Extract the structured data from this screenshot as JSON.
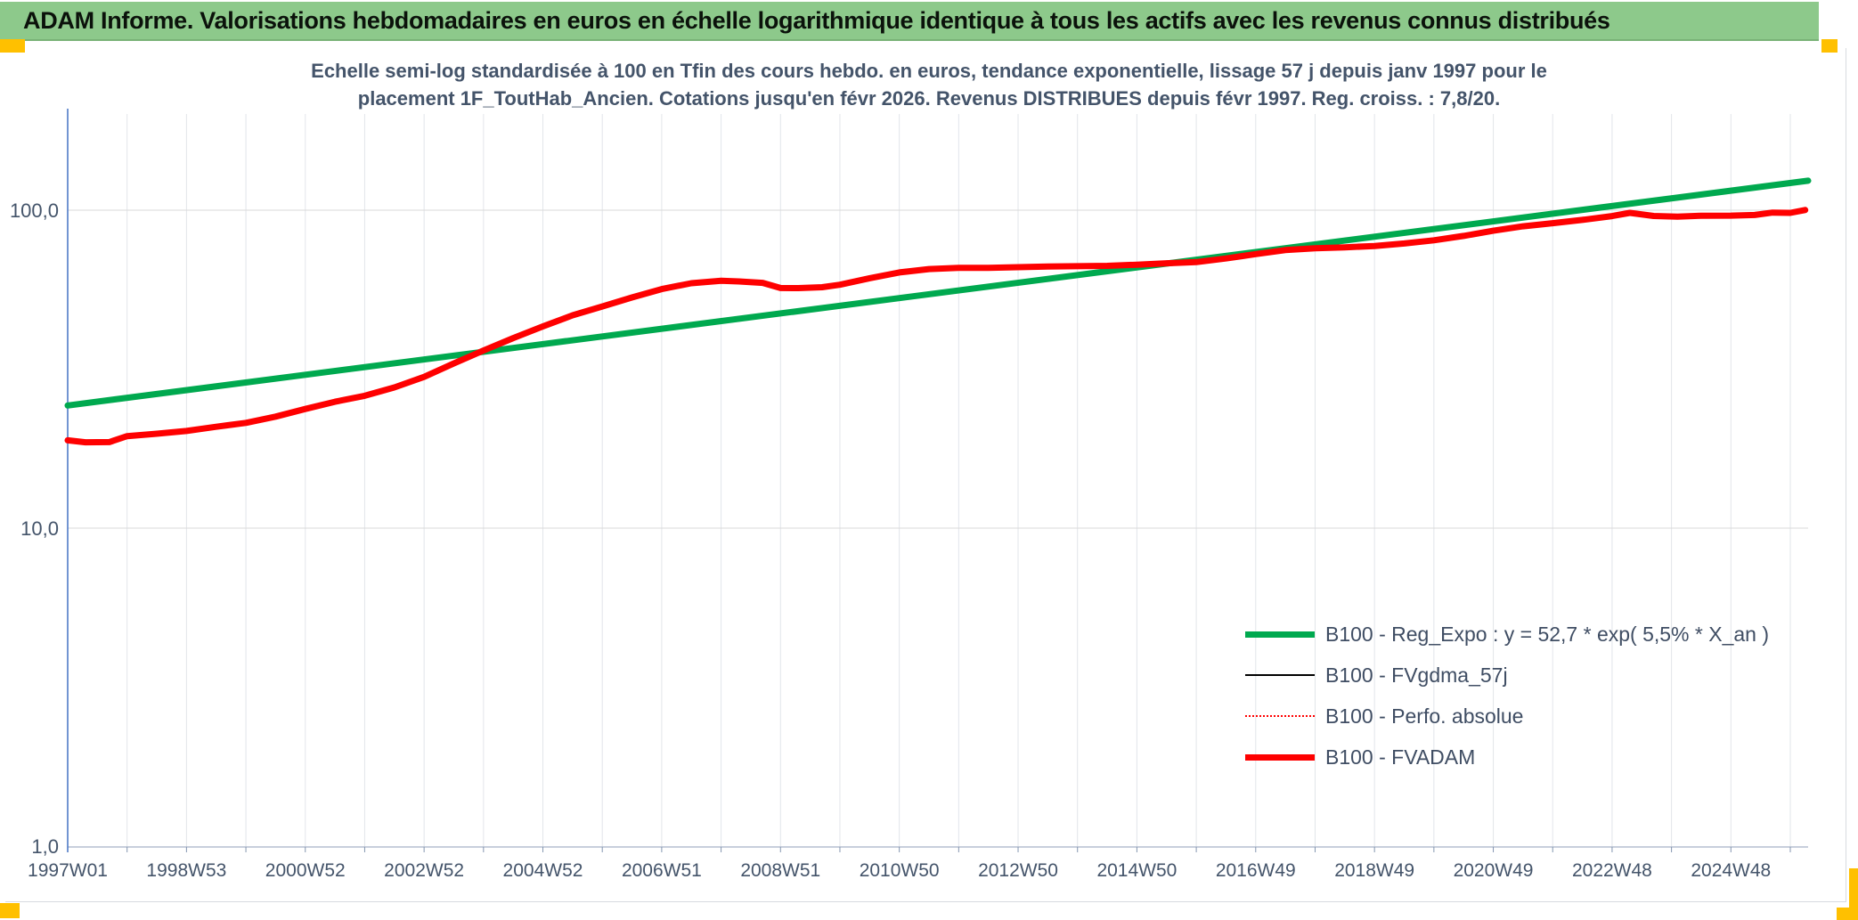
{
  "header": {
    "title": "ADAM Informe. Valorisations hebdomadaires en euros en échelle logarithmique identique à tous les actifs avec les revenus connus distribués"
  },
  "colors": {
    "header_bg": "#8DC98B",
    "corner_marker_gold": "#FFC000",
    "axis_text": "#44546A",
    "y_axis_line_blue": "#4472C4",
    "gridline": "#E2E5EA",
    "reg_expo_green": "#00A94F",
    "fvadam_red": "#FE0000"
  },
  "chart_data": {
    "type": "line",
    "title": "Echelle semi-log standardisée à 100 en Tfin des cours hebdo. en euros, tendance exponentielle, lissage 57 j depuis janv 1997 pour le placement 1F_ToutHab_Ancien. Cotations jusqu'en févr 2026. Revenus DISTRIBUES depuis févr 1997. Reg. croiss. : 7,8/20.",
    "title_lines": [
      "Echelle semi-log standardisée à 100 en Tfin des cours hebdo. en euros, tendance exponentielle, lissage 57 j depuis janv 1997 pour le",
      "placement 1F_ToutHab_Ancien. Cotations jusqu'en févr 2026. Revenus DISTRIBUES depuis févr 1997. Reg. croiss. : 7,8/20."
    ],
    "x_axis": {
      "range": [
        1997.0,
        2026.3
      ],
      "gridline_interval_years": 1,
      "tick_labels": [
        "1997W01",
        "1998W53",
        "2000W52",
        "2002W52",
        "2004W52",
        "2006W51",
        "2008W51",
        "2010W50",
        "2012W50",
        "2014W50",
        "2016W49",
        "2018W49",
        "2020W49",
        "2022W48",
        "2024W48"
      ],
      "label_years": [
        1997,
        1999,
        2001,
        2003,
        2005,
        2007,
        2009,
        2011,
        2013,
        2015,
        2017,
        2019,
        2021,
        2023,
        2025
      ]
    },
    "y_axis": {
      "scale": "log",
      "ticks": [
        1,
        10,
        100
      ],
      "tick_labels": [
        "1,0",
        "10,0",
        "100,0"
      ]
    },
    "legend_position": "inside-lower-right",
    "grid": true,
    "series": [
      {
        "name": "B100 - Reg_Expo : y = 52,7 * exp( 5,5% *  X_an )",
        "color": "#00A94F",
        "style": "solid",
        "width": 7,
        "points": [
          [
            1997.0,
            24.3
          ],
          [
            2026.3,
            123.8
          ]
        ]
      },
      {
        "name": "B100 - FVgdma_57j",
        "color": "#000000",
        "style": "solid",
        "width": 2.5,
        "points": [],
        "note": "not visibly distinct in the plot; hidden behind B100 - FVADAM"
      },
      {
        "name": "B100 - Perfo. absolue",
        "color": "#FF0000",
        "style": "dotted",
        "width": 2,
        "points": [],
        "note": "not visibly distinct in the plot; hidden behind B100 - FVADAM"
      },
      {
        "name": "B100 - FVADAM",
        "color": "#FE0000",
        "style": "solid",
        "width": 7,
        "points": [
          [
            1997.0,
            18.8
          ],
          [
            1997.3,
            18.6
          ],
          [
            1997.7,
            18.7
          ],
          [
            1998.0,
            19.4
          ],
          [
            1998.5,
            19.9
          ],
          [
            1999.0,
            20.3
          ],
          [
            1999.5,
            20.9
          ],
          [
            2000.0,
            21.5
          ],
          [
            2000.5,
            22.4
          ],
          [
            2001.0,
            23.5
          ],
          [
            2001.5,
            24.8
          ],
          [
            2002.0,
            26.2
          ],
          [
            2002.5,
            28.0
          ],
          [
            2003.0,
            30.0
          ],
          [
            2003.5,
            32.8
          ],
          [
            2004.0,
            36.0
          ],
          [
            2004.5,
            39.5
          ],
          [
            2005.0,
            43.0
          ],
          [
            2005.5,
            46.8
          ],
          [
            2006.0,
            50.2
          ],
          [
            2006.5,
            53.5
          ],
          [
            2007.0,
            56.2
          ],
          [
            2007.5,
            58.3
          ],
          [
            2008.0,
            59.8
          ],
          [
            2008.3,
            60.2
          ],
          [
            2008.7,
            58.8
          ],
          [
            2009.0,
            57.2
          ],
          [
            2009.3,
            56.3
          ],
          [
            2009.7,
            57.1
          ],
          [
            2010.0,
            58.4
          ],
          [
            2010.5,
            61.0
          ],
          [
            2011.0,
            63.2
          ],
          [
            2011.5,
            64.9
          ],
          [
            2012.0,
            66.2
          ],
          [
            2012.5,
            66.6
          ],
          [
            2013.0,
            66.4
          ],
          [
            2013.5,
            66.1
          ],
          [
            2014.0,
            66.3
          ],
          [
            2014.5,
            66.7
          ],
          [
            2015.0,
            67.3
          ],
          [
            2015.5,
            68.2
          ],
          [
            2016.0,
            69.2
          ],
          [
            2016.5,
            70.9
          ],
          [
            2017.0,
            72.4
          ],
          [
            2017.5,
            74.1
          ],
          [
            2018.0,
            75.7
          ],
          [
            2018.5,
            76.9
          ],
          [
            2019.0,
            77.6
          ],
          [
            2019.5,
            78.7
          ],
          [
            2020.0,
            80.5
          ],
          [
            2020.5,
            82.8
          ],
          [
            2021.0,
            85.5
          ],
          [
            2021.5,
            88.5
          ],
          [
            2022.0,
            91.5
          ],
          [
            2022.5,
            94.2
          ],
          [
            2023.0,
            96.1
          ],
          [
            2023.3,
            97.3
          ],
          [
            2023.7,
            96.3
          ],
          [
            2024.1,
            95.5
          ],
          [
            2024.5,
            95.9
          ],
          [
            2025.0,
            96.1
          ],
          [
            2025.4,
            96.8
          ],
          [
            2025.7,
            97.4
          ],
          [
            2026.0,
            98.8
          ],
          [
            2026.25,
            100.0
          ]
        ]
      }
    ]
  }
}
